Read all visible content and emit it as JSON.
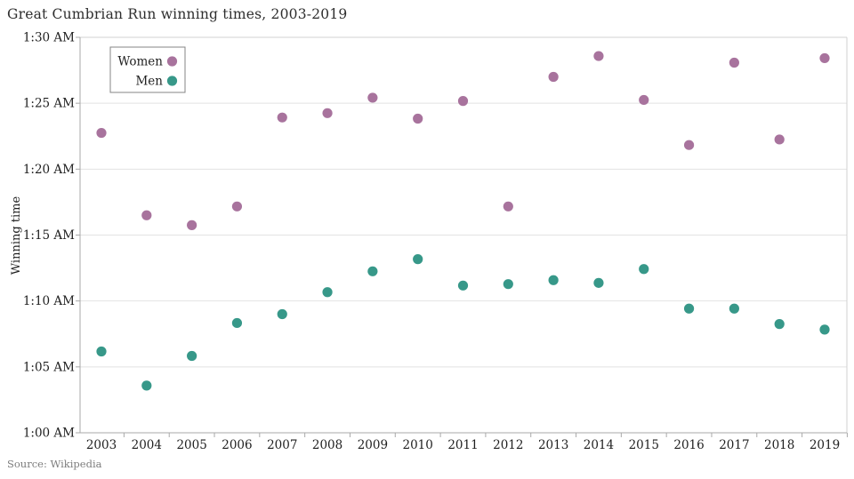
{
  "page": {
    "title": "Great Cumbrian Run winning times, 2003-2019",
    "source": "Source: Wikipedia"
  },
  "chart_data": {
    "type": "scatter",
    "title": "Great Cumbrian Run winning times, 2003-2019",
    "xlabel": "",
    "ylabel": "Winning time",
    "legend_position": "top-left",
    "grid": "horizontal",
    "x_years": [
      2003,
      2004,
      2005,
      2006,
      2007,
      2008,
      2009,
      2010,
      2011,
      2012,
      2013,
      2014,
      2015,
      2016,
      2017,
      2018,
      2019
    ],
    "y_axis": {
      "tick_labels": [
        "1:00 AM",
        "1:05 AM",
        "1:10 AM",
        "1:15 AM",
        "1:20 AM",
        "1:25 AM",
        "1:30 AM"
      ],
      "tick_minutes_after_1am": [
        0,
        5,
        10,
        15,
        20,
        25,
        30
      ],
      "range": [
        "1:00 AM",
        "1:30 AM"
      ]
    },
    "series": [
      {
        "name": "Women",
        "color": "#a8739d",
        "times": [
          "1:22:45",
          "1:16:30",
          "1:15:45",
          "1:17:10",
          "1:23:55",
          "1:24:15",
          "1:25:25",
          "1:23:50",
          "1:25:10",
          "1:17:10",
          "1:27:00",
          "1:28:35",
          "1:25:15",
          "1:21:50",
          "1:28:05",
          "1:22:15",
          "1:28:25"
        ],
        "min_after_1am": [
          22.75,
          16.5,
          15.75,
          17.17,
          23.92,
          24.25,
          25.42,
          23.83,
          25.17,
          17.17,
          27.0,
          28.58,
          25.25,
          21.83,
          28.08,
          22.25,
          28.42
        ]
      },
      {
        "name": "Men",
        "color": "#379889",
        "times": [
          "1:06:10",
          "1:03:35",
          "1:05:50",
          "1:08:20",
          "1:09:00",
          "1:10:40",
          "1:12:15",
          "1:13:10",
          "1:11:10",
          "1:11:17",
          "1:11:35",
          "1:11:22",
          "1:12:25",
          "1:09:25",
          "1:09:25",
          "1:08:15",
          "1:07:50"
        ],
        "min_after_1am": [
          6.17,
          3.58,
          5.83,
          8.33,
          9.0,
          10.67,
          12.25,
          13.17,
          11.17,
          11.28,
          11.58,
          11.37,
          12.42,
          9.42,
          9.42,
          8.25,
          7.83
        ]
      }
    ],
    "colors": {
      "gridline": "#e2e2e2",
      "frame": "#d2d2d2",
      "axis": "#a9a9a9",
      "tick_text": "#1f1f1f",
      "legend_border": "#848484"
    }
  }
}
